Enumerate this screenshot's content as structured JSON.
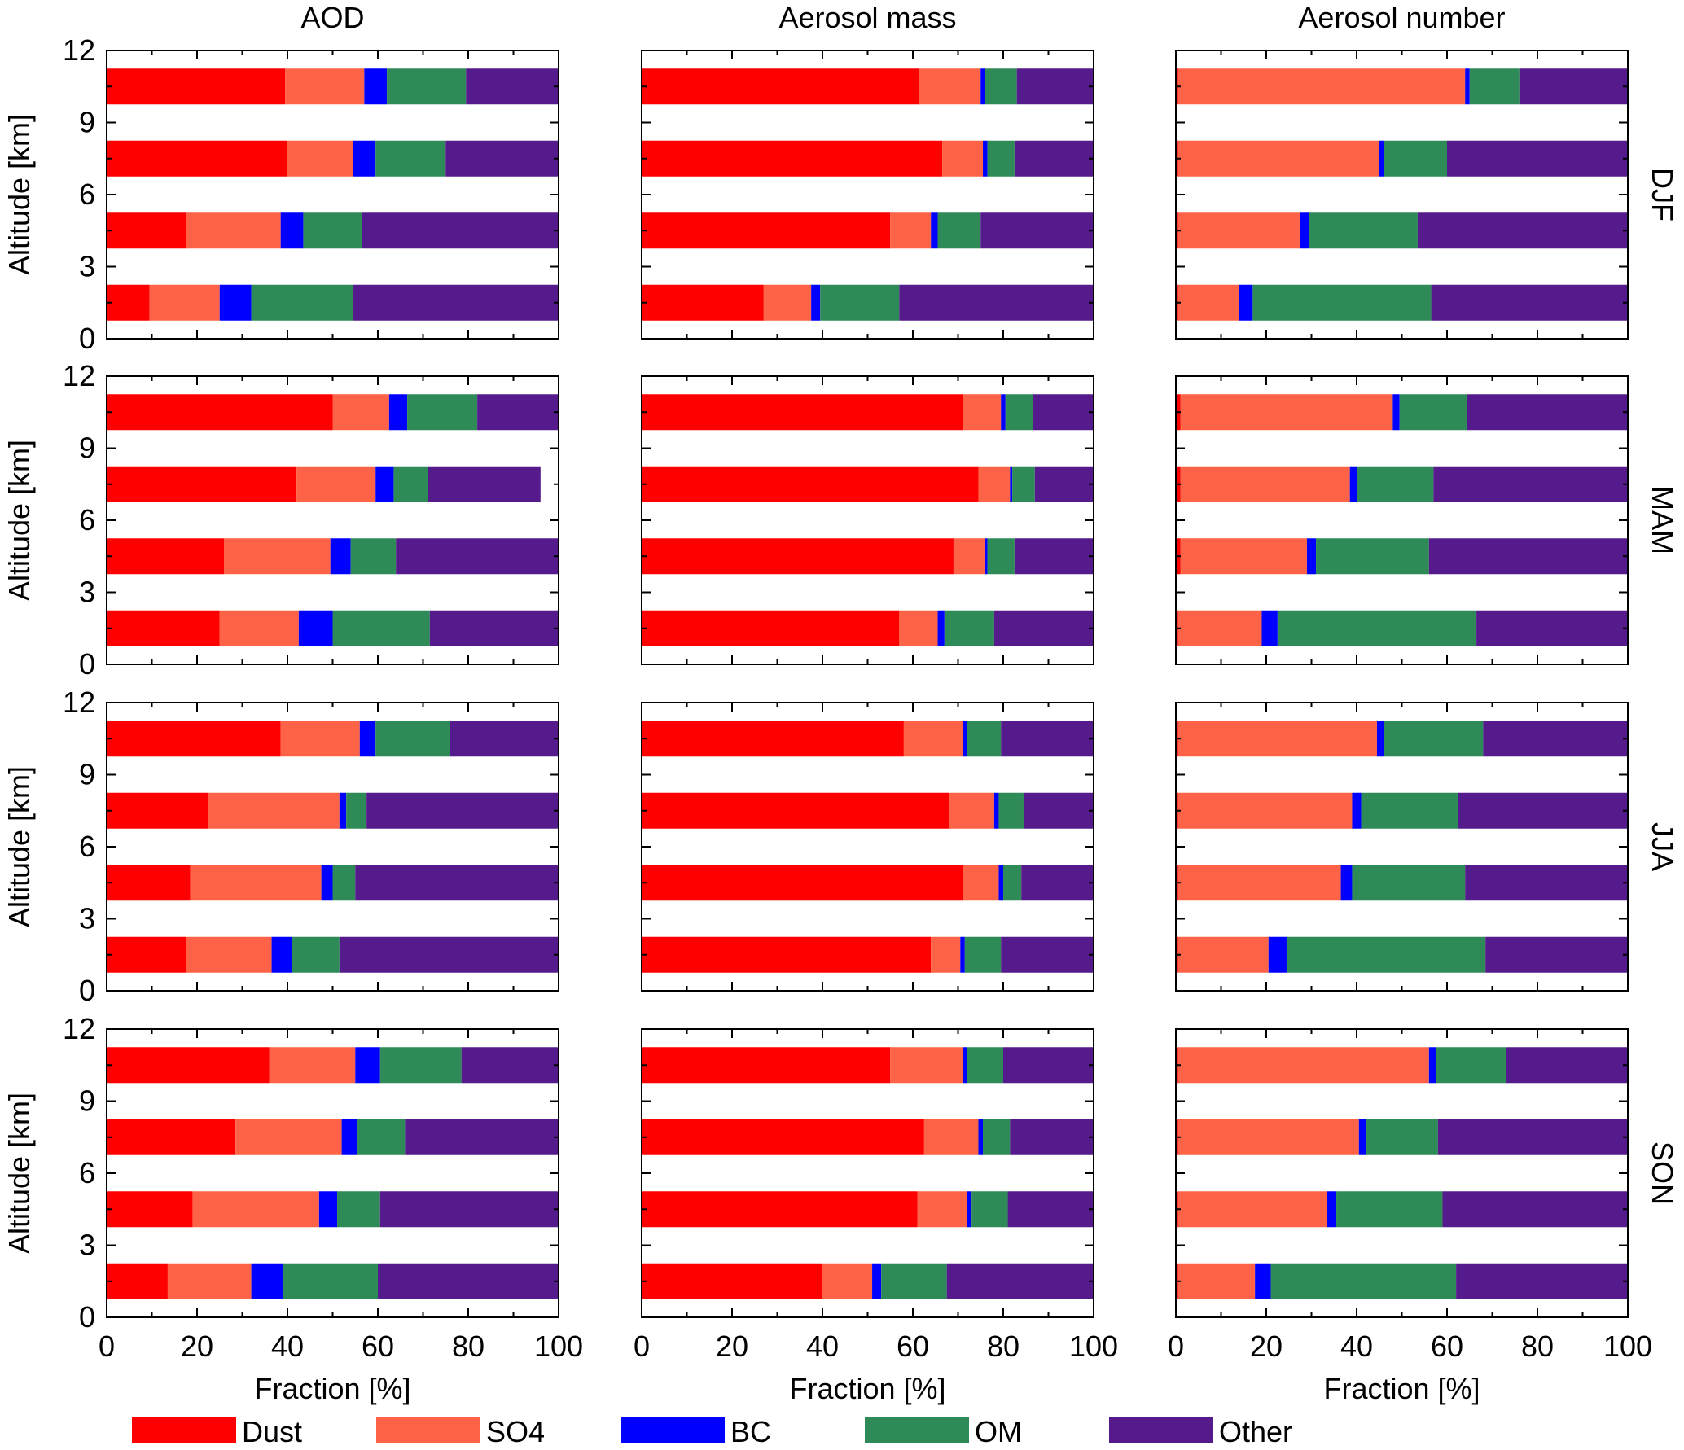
{
  "chart_data": {
    "type": "bar",
    "orientation": "horizontal",
    "stacked": true,
    "grid": false,
    "legend_position": "bottom",
    "columns": [
      "AOD",
      "Aerosol mass",
      "Aerosol number"
    ],
    "seasons": [
      "DJF",
      "MAM",
      "JJA",
      "SON"
    ],
    "xlabel": "Fraction [%]",
    "ylabel": "Altitude [km]",
    "xlim": [
      0,
      100
    ],
    "ylim": [
      0,
      12
    ],
    "xticks": [
      0,
      20,
      40,
      60,
      80,
      100
    ],
    "yticks": [
      0,
      3,
      6,
      9,
      12
    ],
    "altitude_bins": [
      1.5,
      4.5,
      7.5,
      10.5
    ],
    "series": [
      {
        "name": "Dust",
        "color": "#ff0000"
      },
      {
        "name": "SO4",
        "color": "#ff6347"
      },
      {
        "name": "BC",
        "color": "#0000ff"
      },
      {
        "name": "OM",
        "color": "#2e8b57"
      },
      {
        "name": "Other",
        "color": "#551a8b"
      }
    ],
    "note_values": "Each bar: [Dust, SO4, BC, OM, Other] in % (sums to 100); bars listed from lowest to highest altitude bin",
    "panels": [
      {
        "season": "DJF",
        "column": "AOD",
        "bars": [
          [
            9.5,
            15.5,
            7,
            22.5,
            45.5
          ],
          [
            17.5,
            21,
            5,
            13,
            43.5
          ],
          [
            40,
            14.5,
            5,
            15.5,
            25
          ],
          [
            39.5,
            17.5,
            5,
            17.5,
            20.5
          ]
        ]
      },
      {
        "season": "DJF",
        "column": "Aerosol mass",
        "bars": [
          [
            27,
            10.5,
            2,
            17.5,
            43
          ],
          [
            55,
            9,
            1.5,
            9.5,
            25
          ],
          [
            66.5,
            9,
            1,
            6,
            17.5
          ],
          [
            61.5,
            13.5,
            1,
            7,
            17
          ]
        ]
      },
      {
        "season": "DJF",
        "column": "Aerosol number",
        "bars": [
          [
            0.5,
            13.5,
            3,
            39.5,
            43.5
          ],
          [
            0.5,
            27,
            2,
            24,
            46.5
          ],
          [
            0.5,
            44.5,
            1,
            14,
            40
          ],
          [
            0.5,
            63.5,
            1,
            11,
            24
          ]
        ]
      },
      {
        "season": "MAM",
        "column": "AOD",
        "bars": [
          [
            25,
            17.5,
            7.5,
            21.5,
            28.5
          ],
          [
            26,
            23.5,
            4.5,
            10,
            36
          ],
          [
            42,
            17.5,
            4,
            7.5,
            25
          ],
          [
            50,
            12.5,
            4,
            15.5,
            18
          ]
        ]
      },
      {
        "season": "MAM",
        "column": "Aerosol mass",
        "bars": [
          [
            57,
            8.5,
            1.5,
            11,
            22
          ],
          [
            69,
            7,
            0.5,
            6,
            17.5
          ],
          [
            74.5,
            7,
            0.5,
            5,
            13
          ],
          [
            71,
            8.5,
            1,
            6,
            13.5
          ]
        ]
      },
      {
        "season": "MAM",
        "column": "Aerosol number",
        "bars": [
          [
            0.5,
            18.5,
            3.5,
            44,
            33.5
          ],
          [
            1,
            28,
            2,
            25,
            44
          ],
          [
            1,
            37.5,
            1.5,
            17,
            43
          ],
          [
            1,
            47,
            1.5,
            15,
            35.5
          ]
        ]
      },
      {
        "season": "JJA",
        "column": "AOD",
        "bars": [
          [
            17.5,
            19,
            4.5,
            10.5,
            48.5
          ],
          [
            18.5,
            29,
            2.5,
            5,
            45
          ],
          [
            22.5,
            29,
            1.5,
            4.5,
            42.5
          ],
          [
            38.5,
            17.5,
            3.5,
            16.5,
            24
          ]
        ]
      },
      {
        "season": "JJA",
        "column": "Aerosol mass",
        "bars": [
          [
            64,
            6.5,
            1,
            8,
            20.5
          ],
          [
            71,
            8,
            1,
            4,
            16
          ],
          [
            68,
            10,
            1,
            5.5,
            15.5
          ],
          [
            58,
            13,
            1,
            7.5,
            20.5
          ]
        ]
      },
      {
        "season": "JJA",
        "column": "Aerosol number",
        "bars": [
          [
            0.5,
            20,
            4,
            44,
            31.5
          ],
          [
            0.5,
            36,
            2.5,
            25,
            36
          ],
          [
            0.5,
            38.5,
            2,
            21.5,
            37.5
          ],
          [
            0.5,
            44,
            1.5,
            22,
            32
          ]
        ]
      },
      {
        "season": "SON",
        "column": "AOD",
        "bars": [
          [
            13.5,
            18.5,
            7,
            21,
            40
          ],
          [
            19,
            28,
            4,
            9.5,
            39.5
          ],
          [
            28.5,
            23.5,
            3.5,
            10.5,
            34
          ],
          [
            36,
            19,
            5.5,
            18,
            21.5
          ]
        ]
      },
      {
        "season": "SON",
        "column": "Aerosol mass",
        "bars": [
          [
            40,
            11,
            2,
            14.5,
            32.5
          ],
          [
            61,
            11,
            1,
            8,
            19
          ],
          [
            62.5,
            12,
            1,
            6,
            18.5
          ],
          [
            55,
            16,
            1,
            8,
            20
          ]
        ]
      },
      {
        "season": "SON",
        "column": "Aerosol number",
        "bars": [
          [
            0.5,
            17,
            3.5,
            41,
            38
          ],
          [
            0.5,
            33,
            2,
            23.5,
            41
          ],
          [
            0.5,
            40,
            1.5,
            16,
            42
          ],
          [
            0.5,
            55.5,
            1.5,
            15.5,
            27
          ]
        ]
      }
    ]
  }
}
